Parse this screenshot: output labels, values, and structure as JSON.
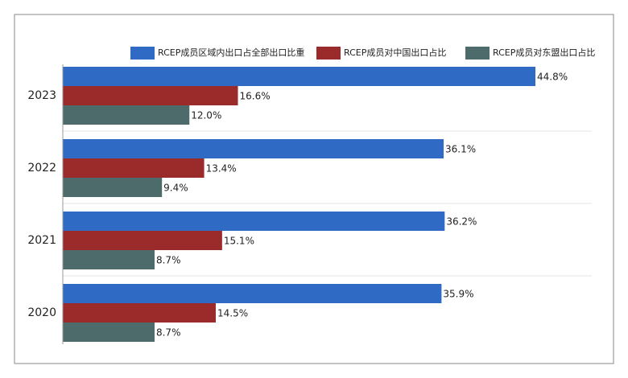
{
  "chart_data": {
    "type": "bar",
    "orientation": "horizontal",
    "categories": [
      "2023",
      "2022",
      "2021",
      "2020"
    ],
    "series": [
      {
        "name": "RCEP成员区域内出口占全部出口比重",
        "color": "#2f6bc4",
        "values": [
          44.8,
          36.1,
          36.2,
          35.9
        ],
        "value_labels": [
          "44.8%",
          "36.1%",
          "36.2%",
          "35.9%"
        ]
      },
      {
        "name": "RCEP成员对中国出口占比",
        "color": "#9b2a2b",
        "values": [
          16.6,
          13.4,
          15.1,
          14.5
        ],
        "value_labels": [
          "16.6%",
          "13.4%",
          "15.1%",
          "14.5%"
        ]
      },
      {
        "name": "RCEP成员对东盟出口占比",
        "color": "#4c6b6a",
        "values": [
          12.0,
          9.4,
          8.7,
          8.7
        ],
        "value_labels": [
          "12.0%",
          "9.4%",
          "8.7%",
          "8.7%"
        ]
      }
    ],
    "legend": "top-right"
  }
}
